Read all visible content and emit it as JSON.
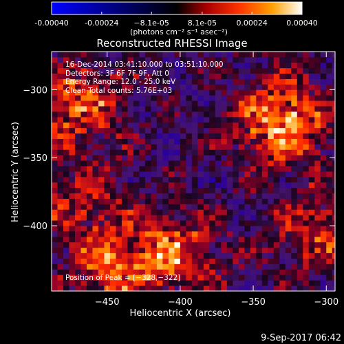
{
  "chart_data": {
    "type": "heatmap",
    "title": "Reconstructed RHESSI Image",
    "xlabel": "Heliocentric X (arcsec)",
    "ylabel": "Heliocentric Y (arcsec)",
    "xlim": [
      -488,
      -294
    ],
    "ylim": [
      -448,
      -272
    ],
    "x_ticks": [
      -450,
      -400,
      -350,
      -300
    ],
    "x_tick_labels": [
      "−450",
      "−400",
      "−350",
      "−300"
    ],
    "y_ticks": [
      -300,
      -350,
      -400
    ],
    "y_tick_labels": [
      "−300",
      "−350",
      "−400"
    ],
    "colorbar": {
      "min": -0.0004,
      "max": 0.0004,
      "ticks": [
        -0.0004,
        -0.00024,
        -8.1e-05,
        8.1e-05,
        0.00024,
        0.0004
      ],
      "tick_labels": [
        "-0.00040",
        "-0.00024",
        "−8.1e-05",
        "8.1e-05",
        "0.00024",
        "0.00040"
      ],
      "units_label": "(photons cm⁻² s⁻¹ asec⁻²)"
    },
    "info_lines": [
      "16-Dec-2014 03:41:10.000 to 03:51:10.000",
      "Detectors: 3F 6F 7F 9F, Att 0",
      "Energy Range: 12.0 - 25.0 keV",
      "Clean     Total counts: 5.76E+03"
    ],
    "peak_label": "Position of Peak = [−328,−322]",
    "peak_position": [
      -328,
      -322
    ],
    "grid": false,
    "sources": [
      {
        "x": -330,
        "y": -322,
        "amplitude": 1.0
      },
      {
        "x": -470,
        "y": -310,
        "amplitude": 0.75
      },
      {
        "x": -405,
        "y": -420,
        "amplitude": 0.75
      },
      {
        "x": -450,
        "y": -432,
        "amplitude": 0.6
      },
      {
        "x": -305,
        "y": -405,
        "amplitude": 0.6
      },
      {
        "x": -470,
        "y": -380,
        "amplitude": 0.45
      }
    ],
    "colors": {
      "background": "#000000",
      "text": "#ffffff",
      "colormap": [
        "#0000ff",
        "#000000",
        "#ff3300",
        "#ffa000",
        "#ffffff"
      ]
    }
  },
  "footer": {
    "date": "9-Sep-2017 06:42"
  }
}
